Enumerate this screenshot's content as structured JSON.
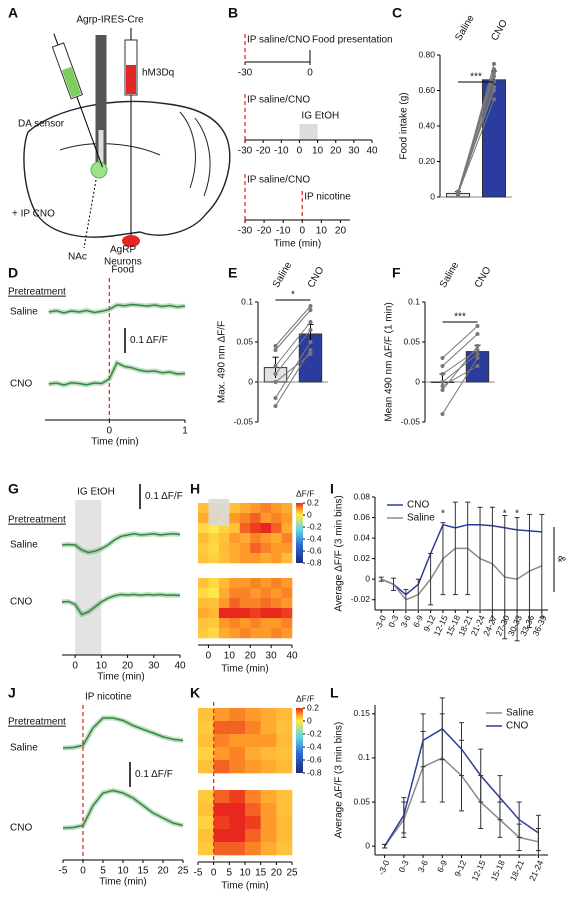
{
  "panel_labels": [
    "A",
    "B",
    "C",
    "D",
    "E",
    "F",
    "G",
    "H",
    "I",
    "J",
    "K",
    "L"
  ],
  "schematic": {
    "construct": "Agrp-IRES-Cre",
    "sensor": "DA sensor",
    "virus": "hM3Dq",
    "treatment": "+ IP CNO",
    "region": "NAc",
    "neurons": [
      "AgRP",
      "Neurons"
    ]
  },
  "chart_data": [
    {
      "type": "timeline",
      "xlim": [
        -30,
        0
      ],
      "xticks": [
        -30,
        0
      ],
      "events": [
        {
          "x": -30,
          "label": "IP saline/CNO",
          "line": "dashed"
        },
        {
          "x": 0,
          "label": "Food presentation"
        }
      ]
    },
    {
      "type": "timeline",
      "xlim": [
        -30,
        40
      ],
      "xticks": [
        -30,
        -20,
        -10,
        0,
        10,
        20,
        30,
        40
      ],
      "events": [
        {
          "x": -30,
          "label": "IP saline/CNO",
          "line": "dashed"
        },
        {
          "x": 0,
          "label": "IG EtOH",
          "span": 10
        }
      ]
    },
    {
      "type": "timeline",
      "xlim": [
        -30,
        25
      ],
      "xticks": [
        -30,
        -20,
        -10,
        0,
        10,
        20
      ],
      "xlabel": "Time (min)",
      "events": [
        {
          "x": -30,
          "label": "IP saline/CNO",
          "line": "dashed"
        },
        {
          "x": 0,
          "label": "IP nicotine",
          "line": "dashed"
        }
      ]
    },
    {
      "type": "bar",
      "categories": [
        "Saline",
        "CNO"
      ],
      "values": [
        0.02,
        0.66
      ],
      "errors": [
        0.01,
        0.05
      ],
      "colors": [
        "#e3e3e3",
        "#2a3d9e"
      ],
      "pairs": [
        [
          0.02,
          0.55
        ],
        [
          0.03,
          0.6
        ],
        [
          0.01,
          0.65
        ],
        [
          0.02,
          0.7
        ],
        [
          0.03,
          0.72
        ],
        [
          0.02,
          0.68
        ],
        [
          0.01,
          0.75
        ],
        [
          0.02,
          0.62
        ]
      ],
      "ylim": [
        0,
        0.8
      ],
      "yticks": [
        0,
        {
          "value": 0.2,
          "label": "0.20"
        },
        {
          "value": 0.4,
          "label": "0.40"
        },
        {
          "value": 0.6,
          "label": "0.60"
        },
        {
          "value": 0.8,
          "label": "0.80"
        }
      ],
      "ylabel": "Food intake (g)",
      "significance": "***"
    },
    {
      "type": "trace",
      "x": [
        -0.8,
        -0.7,
        -0.6,
        -0.5,
        -0.4,
        -0.3,
        -0.2,
        -0.1,
        0,
        0.1,
        0.2,
        0.3,
        0.4,
        0.5,
        0.6,
        0.7,
        0.8,
        0.9,
        1
      ],
      "series": [
        {
          "name": "Saline",
          "color": "#2e8b3d",
          "values": [
            0,
            0.005,
            -0.003,
            0.004,
            0,
            0.006,
            -0.002,
            0.003,
            0.01,
            0.028,
            0.025,
            0.03,
            0.027,
            0.024,
            0.028,
            0.022,
            0.026,
            0.02,
            0.024
          ]
        },
        {
          "name": "CNO",
          "color": "#2e8b3d",
          "values": [
            0,
            0.004,
            -0.004,
            0.005,
            0.002,
            -0.003,
            0.004,
            0.002,
            0.02,
            0.085,
            0.07,
            0.065,
            0.055,
            0.05,
            0.052,
            0.045,
            0.048,
            0.04,
            0.042
          ]
        }
      ],
      "xlim": [
        -0.85,
        1
      ],
      "xticks": [
        0,
        1
      ],
      "xlabel": "Time (min)",
      "group_label": "Pretreatment",
      "event": {
        "x": 0,
        "label": "Food",
        "line": "dashed"
      },
      "scalebar": {
        "value": 0.1,
        "label": "0.1 ΔF/F"
      }
    },
    {
      "type": "bar",
      "categories": [
        "Saline",
        "CNO"
      ],
      "values": [
        0.018,
        0.06
      ],
      "errors": [
        0.013,
        0.012
      ],
      "colors": [
        "#e3e3e3",
        "#2a3d9e"
      ],
      "pairs": [
        [
          -0.03,
          0.04
        ],
        [
          0,
          0.035
        ],
        [
          0.02,
          0.075
        ],
        [
          0.04,
          0.09
        ],
        [
          0.045,
          0.095
        ],
        [
          0.01,
          0.065
        ],
        [
          -0.02,
          0.05
        ]
      ],
      "ylim": [
        -0.05,
        0.1
      ],
      "yticks": [
        -0.05,
        0,
        0.05,
        0.1
      ],
      "ylabel": "Max. 490 nm ΔF/F",
      "significance": "*"
    },
    {
      "type": "bar",
      "categories": [
        "Saline",
        "CNO"
      ],
      "values": [
        0,
        0.038
      ],
      "errors": [
        0.01,
        0.008
      ],
      "colors": [
        "#e3e3e3",
        "#2a3d9e"
      ],
      "pairs": [
        [
          -0.04,
          0.03
        ],
        [
          0.02,
          0.06
        ],
        [
          0.03,
          0.07
        ],
        [
          -0.01,
          0.045
        ],
        [
          -0.005,
          0.02
        ],
        [
          0,
          0.035
        ],
        [
          0.01,
          0.04
        ]
      ],
      "ylim": [
        -0.05,
        0.1
      ],
      "yticks": [
        -0.05,
        0,
        0.05,
        0.1
      ],
      "ylabel": "Mean 490 nm ΔF/F  (1 min)",
      "significance": "***"
    },
    {
      "type": "trace",
      "x": [
        -5,
        -2.5,
        0,
        2.5,
        5,
        7.5,
        10,
        12.5,
        15,
        17.5,
        20,
        22.5,
        25,
        27.5,
        30,
        32.5,
        35,
        37.5,
        40
      ],
      "series": [
        {
          "name": "Saline",
          "color": "#2e8b3d",
          "values": [
            0,
            0.002,
            0,
            -0.02,
            -0.03,
            -0.025,
            -0.015,
            0,
            0.02,
            0.035,
            0.04,
            0.045,
            0.04,
            0.042,
            0.045,
            0.04,
            0.043,
            0.045,
            0.042
          ]
        },
        {
          "name": "CNO",
          "color": "#2e8b3d",
          "values": [
            0,
            0.002,
            -0.01,
            -0.05,
            -0.04,
            -0.02,
            0,
            0.015,
            0.025,
            0.03,
            0.028,
            0.03,
            0.027,
            0.03,
            0.028,
            0.03,
            0.027,
            0.028,
            0.026
          ]
        }
      ],
      "xlim": [
        -5,
        40
      ],
      "xticks": [
        0,
        10,
        20,
        30,
        40
      ],
      "xlabel": "Time (min)",
      "group_label": "Pretreatment",
      "event": {
        "x": 0,
        "label": "IG EtOH",
        "span": 10
      },
      "scalebar": {
        "value": 0.1,
        "label": "0.1 ΔF/F"
      }
    },
    {
      "type": "heatmap",
      "xlim": [
        -5,
        40
      ],
      "xticks": [
        0,
        10,
        20,
        30,
        40
      ],
      "xlabel": "Time (min)",
      "event": {
        "x": 0,
        "span": 10
      },
      "colorbar": {
        "title": "ΔF/F",
        "lim": [
          -0.8,
          0.2
        ],
        "ticks": [
          0.2,
          0,
          -0.2,
          -0.4,
          -0.6,
          -0.8
        ]
      },
      "blocks": [
        [
          [
            0.05,
            0.02,
            0,
            0.05,
            0.08,
            0.1,
            0.12,
            0.1,
            0.08
          ],
          [
            0.08,
            0.05,
            0.02,
            0.1,
            0.12,
            0.15,
            0.1,
            0.12,
            0.1
          ],
          [
            0.02,
            0,
            0.03,
            0.05,
            0.15,
            0.18,
            0.2,
            0.15,
            0.08
          ],
          [
            0.06,
            0.03,
            0.05,
            0.1,
            0.08,
            0.12,
            0.1,
            0.08,
            0.12
          ],
          [
            0.04,
            0.02,
            0.06,
            0.08,
            0.1,
            0.15,
            0.12,
            0.1,
            0.1
          ],
          [
            0.05,
            0.03,
            0.05,
            0.08,
            0.1,
            0.1,
            0.08,
            0.1,
            0.06
          ]
        ],
        [
          [
            0.05,
            0.02,
            0.06,
            0.1,
            0.1,
            0.12,
            0.1,
            0.12,
            0.1
          ],
          [
            0.02,
            0,
            0.08,
            0.12,
            0.12,
            0.1,
            0.12,
            0.1,
            0.12
          ],
          [
            0.06,
            0.05,
            0.1,
            0.15,
            0.12,
            0.12,
            0.14,
            0.12,
            0.1
          ],
          [
            0.08,
            0.06,
            0.2,
            0.2,
            0.2,
            0.18,
            0.2,
            0.2,
            0.18
          ],
          [
            0.05,
            0.04,
            0.1,
            0.12,
            0.1,
            0.12,
            0.1,
            0.1,
            0.12
          ],
          [
            0.04,
            0.02,
            0.08,
            0.1,
            0.12,
            0.1,
            0.1,
            0.12,
            0.1
          ]
        ]
      ]
    },
    {
      "type": "line",
      "categories": [
        "-3-0",
        "0-3",
        "3-6",
        "6-9",
        "9-12",
        "12-15",
        "15-18",
        "18-21",
        "21-24",
        "24-27",
        "27-30",
        "30-33",
        "33-36",
        "36-39"
      ],
      "series": [
        {
          "name": "CNO",
          "color": "#2a3d9e",
          "values": [
            0,
            -0.005,
            -0.015,
            -0.005,
            0.025,
            0.053,
            0.05,
            0.053,
            0.053,
            0.052,
            0.05,
            0.048,
            0.047,
            0.046
          ]
        },
        {
          "name": "Saline",
          "color": "#8a8a8a",
          "values": [
            0,
            -0.005,
            -0.02,
            -0.015,
            0,
            0.02,
            0.03,
            0.03,
            0.02,
            0.015,
            0.002,
            0,
            0.008,
            0.013
          ],
          "errors": [
            0.002,
            0.006,
            0.01,
            0.015,
            0.025,
            0.035,
            0.045,
            0.045,
            0.05,
            0.055,
            0.06,
            0.06,
            0.055,
            0.05
          ]
        }
      ],
      "ylim": [
        -0.03,
        0.08
      ],
      "yticks": [
        -0.02,
        0,
        0.02,
        0.04,
        0.06,
        0.08
      ],
      "ylabel": "Average ΔF/F (3 min bins)",
      "legend": "upper left",
      "annotations": [
        {
          "text": "*",
          "at": "12-15"
        },
        {
          "text": "*",
          "at": "27-30"
        },
        {
          "text": "*",
          "at": "30-33"
        }
      ],
      "side_mark": "&"
    },
    {
      "type": "trace",
      "x": [
        -5,
        -2.5,
        0,
        2.5,
        5,
        7.5,
        10,
        12.5,
        15,
        17.5,
        20,
        22.5,
        25
      ],
      "series": [
        {
          "name": "Saline",
          "color": "#2e8b3d",
          "values": [
            0,
            0.002,
            0.01,
            0.08,
            0.12,
            0.12,
            0.11,
            0.09,
            0.075,
            0.06,
            0.045,
            0.035,
            0.03
          ]
        },
        {
          "name": "CNO",
          "color": "#2e8b3d",
          "values": [
            0,
            0.002,
            0.01,
            0.09,
            0.14,
            0.15,
            0.14,
            0.12,
            0.09,
            0.06,
            0.04,
            0.02,
            0.01
          ]
        }
      ],
      "xlim": [
        -5,
        25
      ],
      "xticks": [
        -5,
        0,
        5,
        10,
        15,
        20,
        25
      ],
      "xlabel": "Time (min)",
      "group_label": "Pretreatment",
      "event": {
        "x": 0,
        "label": "IP nicotine",
        "line": "dashed"
      },
      "scalebar": {
        "value": 0.1,
        "label": "0.1 ΔF/F"
      }
    },
    {
      "type": "heatmap",
      "xlim": [
        -5,
        25
      ],
      "xticks": [
        -5,
        0,
        5,
        10,
        15,
        20,
        25
      ],
      "xlabel": "Time (min)",
      "event": {
        "x": 0,
        "line": "dashed"
      },
      "colorbar": {
        "title": "ΔF/F",
        "lim": [
          -0.8,
          0.2
        ],
        "ticks": [
          0.2,
          0,
          -0.2,
          -0.4,
          -0.6,
          -0.8
        ]
      },
      "blocks": [
        [
          [
            0.05,
            0.1,
            0.12,
            0.1,
            0.08,
            0.06
          ],
          [
            0.04,
            0.15,
            0.15,
            0.12,
            0.08,
            0.05
          ],
          [
            0.05,
            0.12,
            0.1,
            0.1,
            0.1,
            0.06
          ],
          [
            0.03,
            0.1,
            0.12,
            0.08,
            0.06,
            0.05
          ],
          [
            0.05,
            0.15,
            0.12,
            0.1,
            0.08,
            0.06
          ]
        ],
        [
          [
            0.04,
            0.15,
            0.18,
            0.12,
            0.08,
            0.05
          ],
          [
            0.05,
            0.2,
            0.2,
            0.15,
            0.1,
            0.05
          ],
          [
            0.03,
            0.18,
            0.2,
            0.18,
            0.1,
            0.06
          ],
          [
            0.05,
            0.2,
            0.2,
            0.15,
            0.1,
            0.06
          ],
          [
            0.04,
            0.15,
            0.15,
            0.12,
            0.08,
            0.05
          ]
        ]
      ]
    },
    {
      "type": "line",
      "categories": [
        "-3-0",
        "0-3",
        "3-6",
        "6-9",
        "9-12",
        "12-15",
        "15-18",
        "18-21",
        "21-24"
      ],
      "series": [
        {
          "name": "Saline",
          "color": "#8a8a8a",
          "values": [
            0,
            0.03,
            0.09,
            0.1,
            0.08,
            0.05,
            0.03,
            0.01,
            0.005
          ],
          "errors": [
            0.002,
            0.02,
            0.04,
            0.05,
            0.04,
            0.03,
            0.02,
            0.015,
            0.015
          ]
        },
        {
          "name": "CNO",
          "color": "#2a3d9e",
          "values": [
            0,
            0.035,
            0.12,
            0.133,
            0.11,
            0.08,
            0.055,
            0.03,
            0.015
          ],
          "errors": [
            0.002,
            0.02,
            0.03,
            0.035,
            0.03,
            0.03,
            0.025,
            0.02,
            0.02
          ]
        }
      ],
      "ylim": [
        -0.01,
        0.16
      ],
      "yticks": [
        0,
        0.05,
        0.1,
        0.15
      ],
      "ylabel": "Average ΔF/F (3 min bins)",
      "legend": "upper right"
    }
  ]
}
